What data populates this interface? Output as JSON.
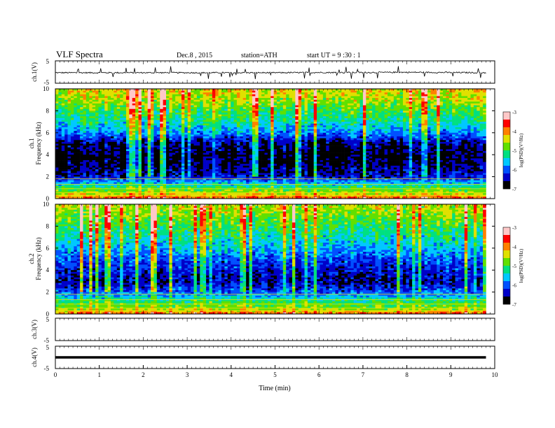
{
  "header": {
    "title": "VLF  Spectra",
    "date": "Dec.8  , 2015",
    "station": "station=ATH",
    "start": "start  UT  =   9  :30 : 1"
  },
  "colors": {
    "colormap": [
      "#000000",
      "#0000c8",
      "#0050ff",
      "#00c8ff",
      "#00e080",
      "#60e000",
      "#e0e000",
      "#ff8000",
      "#ff0000",
      "#ffc8c8"
    ]
  },
  "chart_data": [
    {
      "type": "line",
      "panel": "ch1-waveform",
      "ylabel": "ch.1(V)",
      "yticks": [
        "5",
        "-5"
      ],
      "ylim": [
        -5,
        5
      ],
      "x": [
        0,
        1,
        2,
        3,
        4,
        5,
        6,
        7,
        8,
        9,
        9.8
      ],
      "values": [
        -0.1,
        -0.1,
        -0.1,
        -0.1,
        -0.1,
        -0.1,
        0,
        0,
        0.1,
        0,
        -0.1
      ],
      "baseline_volts": -0.2,
      "noise_amplitude_volts": 0.3
    },
    {
      "type": "heatmap",
      "panel": "ch1-spectrogram",
      "ylabel": "ch.1",
      "ylabel2": "Frequency  (kHz)",
      "yticks": [
        "0",
        "2",
        "4",
        "6",
        "8",
        "10"
      ],
      "ylim": [
        0,
        10
      ],
      "colorbar_label": "log(PSD)(V²/Hz)",
      "colorbar_ticks": [
        "-3",
        "-4",
        "-5",
        "-6",
        "-7"
      ],
      "colorbar_range": [
        -7,
        -3
      ],
      "psd_profile_freq_khz": [
        0,
        0.5,
        1,
        2,
        3,
        4,
        5,
        6,
        7,
        8,
        9,
        10
      ],
      "psd_profile_log": [
        -3.8,
        -4.6,
        -5.1,
        -6.4,
        -6.7,
        -6.8,
        -6.6,
        -5.8,
        -5.3,
        -5.0,
        -4.6,
        -4.3
      ]
    },
    {
      "type": "heatmap",
      "panel": "ch2-spectrogram",
      "ylabel": "ch.2",
      "ylabel2": "Frequency  (kHz)",
      "yticks": [
        "0",
        "2",
        "4",
        "6",
        "8",
        "10"
      ],
      "ylim": [
        0,
        10
      ],
      "colorbar_label": "log(PSD)(V²/Hz)",
      "colorbar_ticks": [
        "-3",
        "-4",
        "-5",
        "-6",
        "-7"
      ],
      "colorbar_range": [
        -7,
        -3
      ],
      "psd_profile_freq_khz": [
        0,
        0.5,
        1,
        2,
        3,
        4,
        5,
        6,
        7,
        8,
        9,
        10
      ],
      "psd_profile_log": [
        -3.8,
        -4.8,
        -5.0,
        -6.0,
        -6.5,
        -6.3,
        -6.0,
        -5.6,
        -5.3,
        -5.0,
        -4.7,
        -4.5
      ]
    },
    {
      "type": "line",
      "panel": "ch3-waveform",
      "ylabel": "ch.3(V)",
      "yticks": [
        "5",
        "-5"
      ],
      "ylim": [
        -5,
        5
      ],
      "x": [
        0,
        9.8
      ],
      "values": [
        5,
        5
      ]
    },
    {
      "type": "line",
      "panel": "ch4-waveform",
      "ylabel": "ch.4(V)",
      "yticks": [
        "5",
        "-5"
      ],
      "ylim": [
        -5,
        5
      ],
      "x": [
        0,
        9.8
      ],
      "values": [
        0,
        0
      ]
    }
  ],
  "xaxis": {
    "label": "Time  (min)",
    "ticks": [
      "0",
      "1",
      "2",
      "3",
      "4",
      "5",
      "6",
      "7",
      "8",
      "9",
      "10"
    ],
    "xlim": [
      0,
      10
    ]
  }
}
